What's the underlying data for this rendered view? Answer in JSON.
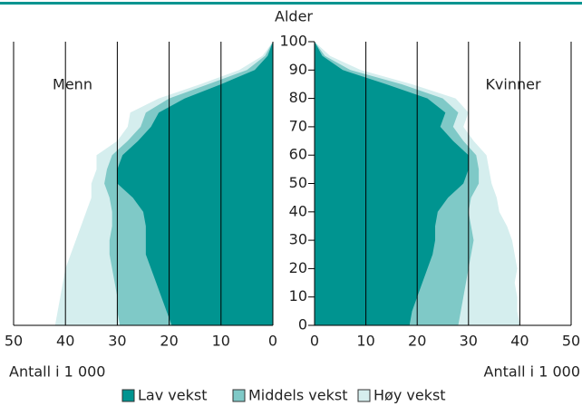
{
  "chart_data": {
    "type": "pyramid",
    "y_label": "Alder",
    "x_label": "Antall i 1 000",
    "left": {
      "title": "Menn"
    },
    "right": {
      "title": "Kvinner"
    },
    "ages": [
      0,
      5,
      10,
      15,
      20,
      25,
      30,
      35,
      40,
      45,
      50,
      55,
      60,
      65,
      70,
      75,
      80,
      85,
      90,
      95,
      100
    ],
    "ylim": [
      0,
      100
    ],
    "yticks": [
      0,
      10,
      20,
      30,
      40,
      50,
      60,
      70,
      80,
      90,
      100
    ],
    "xlim": [
      0,
      50
    ],
    "xticks": [
      0,
      10,
      20,
      30,
      40,
      50
    ],
    "grid": true,
    "series": [
      {
        "name": "Lav vekst",
        "color": "#009490",
        "left": [
          19.5,
          20.5,
          21.5,
          22.5,
          23.5,
          24.5,
          24.5,
          24.5,
          25,
          27,
          30,
          30,
          29,
          26,
          23.5,
          22,
          17,
          10,
          3.5,
          1,
          0
        ],
        "right": [
          18.5,
          19,
          20,
          21,
          22,
          23,
          23.5,
          23.5,
          24,
          26,
          29,
          30,
          30,
          27,
          24.5,
          25.5,
          22,
          14,
          5.5,
          1.5,
          0
        ]
      },
      {
        "name": "Middels vekst",
        "color": "#7fc9c7",
        "left": [
          29.5,
          30,
          30,
          30.5,
          31,
          31.5,
          31.5,
          31,
          31,
          31.5,
          32.5,
          32,
          31,
          28,
          25.5,
          24.5,
          20,
          12.5,
          5,
          1.5,
          0
        ],
        "right": [
          28,
          28.5,
          29,
          29.5,
          30,
          30.5,
          31,
          30.5,
          30,
          30.5,
          32,
          32,
          31.5,
          29,
          27,
          28,
          25,
          17,
          7,
          2,
          0
        ]
      },
      {
        "name": "Høy vekst",
        "color": "#d5eeee",
        "left": [
          42,
          41.5,
          41,
          40.5,
          40,
          39,
          38,
          37,
          36,
          35,
          35,
          34,
          34,
          30,
          28,
          27.5,
          22,
          14,
          6.5,
          2,
          0
        ],
        "right": [
          40,
          39.5,
          39.5,
          39,
          39.5,
          39,
          38.5,
          37.5,
          36,
          35.5,
          34.5,
          34,
          33.5,
          31,
          29,
          30,
          27.5,
          19,
          9,
          3,
          0
        ]
      }
    ]
  }
}
